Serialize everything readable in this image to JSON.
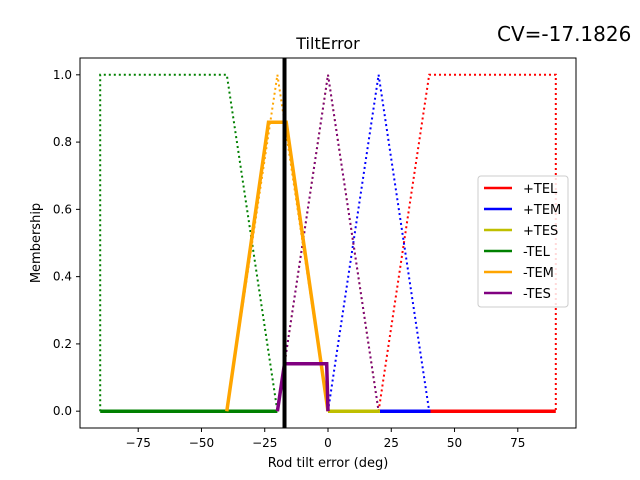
{
  "annotation": "CV=-17.1826",
  "chart_data": {
    "type": "line",
    "title": "TiltError",
    "xlabel": "Rod tilt error (deg)",
    "ylabel": "Membership",
    "xlim": [
      -98,
      98
    ],
    "ylim": [
      -0.05,
      1.05
    ],
    "xticks": [
      -75,
      -50,
      -25,
      0,
      25,
      50,
      75
    ],
    "xtick_labels": [
      "−75",
      "−50",
      "−25",
      "0",
      "25",
      "50",
      "75"
    ],
    "yticks": [
      0.0,
      0.2,
      0.4,
      0.6,
      0.8,
      1.0
    ],
    "ytick_labels": [
      "0.0",
      "0.2",
      "0.4",
      "0.6",
      "0.8",
      "1.0"
    ],
    "crisp_value": -17.1826,
    "legend_position": "center-right",
    "series": [
      {
        "name": "+TEL",
        "color": "#ff0000",
        "membership": [
          [
            20,
            0
          ],
          [
            40,
            1
          ],
          [
            90,
            1
          ],
          [
            90,
            0
          ]
        ],
        "activated": [
          [
            40.5,
            0
          ],
          [
            90,
            0
          ]
        ]
      },
      {
        "name": "+TEM",
        "color": "#0000ff",
        "membership": [
          [
            0,
            0
          ],
          [
            20,
            1
          ],
          [
            40,
            0
          ]
        ],
        "activated": [
          [
            20.5,
            0
          ],
          [
            40.5,
            0
          ]
        ]
      },
      {
        "name": "+TES",
        "color": "#bfbf00",
        "membership": [
          [
            -20,
            0
          ],
          [
            0,
            1
          ],
          [
            20,
            0
          ]
        ],
        "activated": [
          [
            0,
            0
          ],
          [
            20.5,
            0
          ]
        ]
      },
      {
        "name": "-TEL",
        "color": "#008000",
        "membership": [
          [
            -90,
            0
          ],
          [
            -90,
            1
          ],
          [
            -40,
            1
          ],
          [
            -20,
            0
          ]
        ],
        "activated": [
          [
            -90,
            0
          ],
          [
            -20,
            0
          ]
        ]
      },
      {
        "name": "-TEM",
        "color": "#ffa500",
        "membership": [
          [
            -40,
            0
          ],
          [
            -20,
            1
          ],
          [
            0,
            0
          ]
        ],
        "activated": [
          [
            -40,
            0
          ],
          [
            -23.5,
            0.859
          ],
          [
            -18,
            0.859
          ],
          [
            -16.5,
            0.859
          ],
          [
            0,
            0
          ]
        ]
      },
      {
        "name": "-TES",
        "color": "#800080",
        "membership": [
          [
            -20,
            0
          ],
          [
            0,
            1
          ],
          [
            20,
            0
          ]
        ],
        "activated": [
          [
            -20,
            0
          ],
          [
            -17.2,
            0.141
          ],
          [
            -0.5,
            0.141
          ],
          [
            0,
            0
          ]
        ]
      }
    ]
  }
}
